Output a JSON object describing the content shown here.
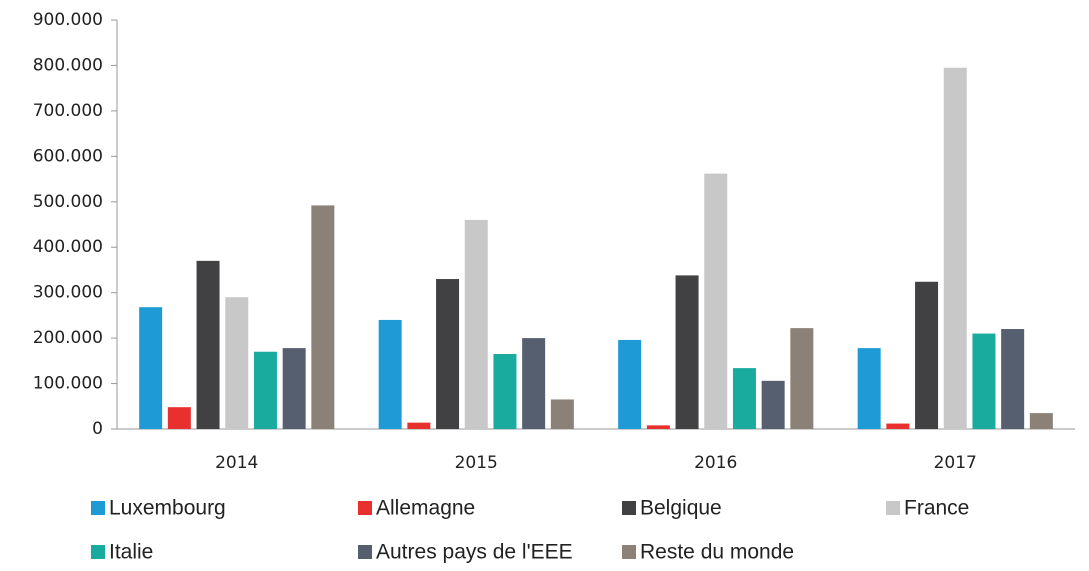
{
  "chart_data": {
    "type": "bar",
    "categories": [
      "2014",
      "2015",
      "2016",
      "2017"
    ],
    "series": [
      {
        "name": "Luxembourg",
        "color": "#1e9bd7",
        "values": [
          268000,
          240000,
          196000,
          178000
        ]
      },
      {
        "name": "Allemagne",
        "color": "#e8312f",
        "values": [
          48000,
          14000,
          8000,
          12000
        ]
      },
      {
        "name": "Belgique",
        "color": "#414042",
        "values": [
          370000,
          330000,
          338000,
          324000
        ]
      },
      {
        "name": "France",
        "color": "#c8c8c8",
        "values": [
          290000,
          460000,
          562000,
          795000
        ]
      },
      {
        "name": "Italie",
        "color": "#1aab9f",
        "values": [
          170000,
          165000,
          134000,
          210000
        ]
      },
      {
        "name": "Autres pays de l'EEE",
        "color": "#565f70",
        "values": [
          178000,
          200000,
          106000,
          220000
        ]
      },
      {
        "name": "Reste du monde",
        "color": "#8c8176",
        "values": [
          492000,
          65000,
          222000,
          35000
        ]
      }
    ],
    "ylim": [
      0,
      900000
    ],
    "yticks": [
      0,
      {
        "value": 100000,
        "label": "100.000"
      },
      {
        "value": 200000,
        "label": "200.000"
      },
      {
        "value": 300000,
        "label": "300.000"
      },
      {
        "value": 400000,
        "label": "400.000"
      },
      {
        "value": 500000,
        "label": "500.000"
      },
      {
        "value": 600000,
        "label": "600.000"
      },
      {
        "value": 700000,
        "label": "700.000"
      },
      {
        "value": 800000,
        "label": "800.000"
      },
      {
        "value": 900000,
        "label": "900.000"
      }
    ],
    "grid": false,
    "legend": "bottom"
  }
}
